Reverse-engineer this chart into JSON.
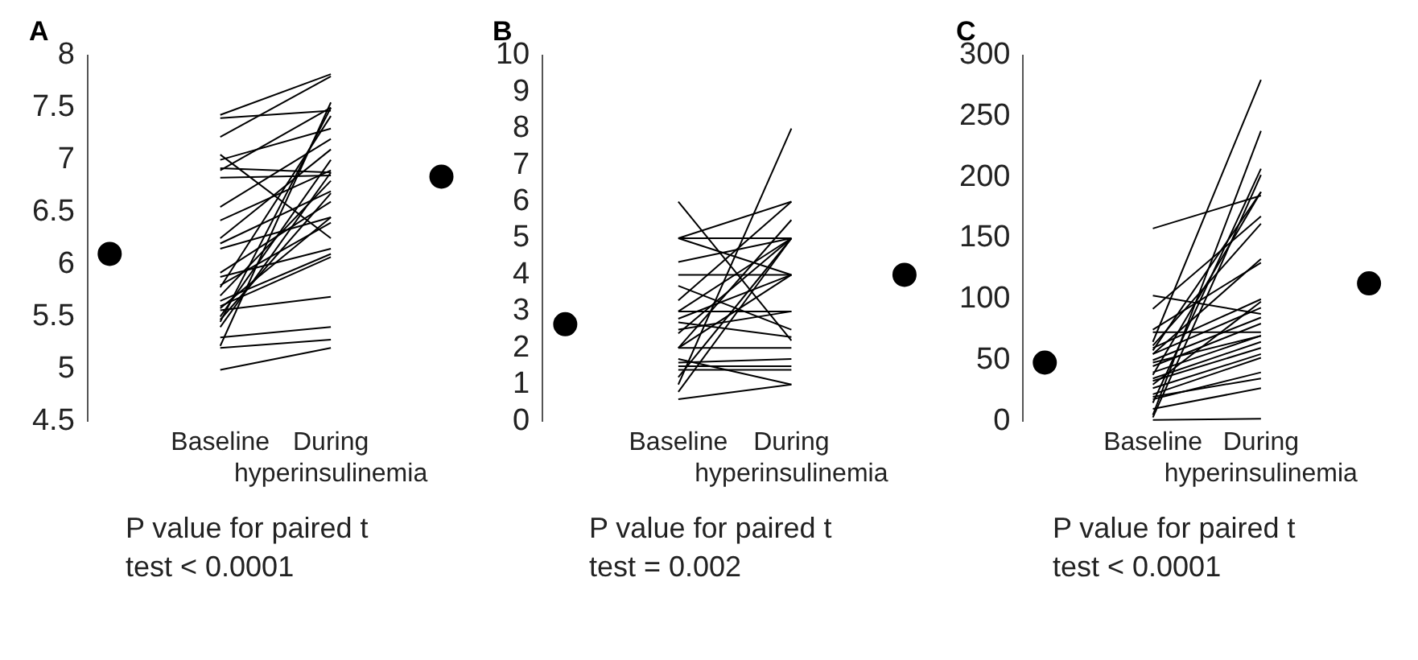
{
  "chart_data": [
    {
      "type": "line",
      "title": "A",
      "categories": [
        null,
        "Baseline",
        "During hyperinsulinemia",
        null
      ],
      "ylim": [
        4.5,
        8
      ],
      "yticks": [
        4.5,
        5,
        5.5,
        6,
        6.5,
        7,
        7.5,
        8
      ],
      "marker": "none",
      "line_style": "solid",
      "annotations": [
        "P value for paired t test < 0.0001"
      ],
      "series": [
        {
          "color": "#000000",
          "values": [
            null,
            4.99,
            5.2,
            null
          ]
        },
        {
          "color": "#000000",
          "values": [
            null,
            5.2,
            5.28,
            null
          ]
        },
        {
          "color": "#000000",
          "values": [
            null,
            5.3,
            5.4,
            null
          ]
        },
        {
          "color": "#000000",
          "values": [
            null,
            5.22,
            7.55,
            null
          ]
        },
        {
          "color": "#000000",
          "values": [
            null,
            5.56,
            5.69,
            null
          ]
        },
        {
          "color": "#000000",
          "values": [
            null,
            7.43,
            7.82,
            null
          ]
        },
        {
          "color": "#000000",
          "values": [
            null,
            7.4,
            7.47,
            null
          ]
        },
        {
          "color": "#000000",
          "values": [
            null,
            7.22,
            7.8,
            null
          ]
        },
        {
          "color": "#000000",
          "values": [
            null,
            7.05,
            6.25,
            null
          ]
        },
        {
          "color": "#000000",
          "values": [
            null,
            6.92,
            6.88,
            null
          ]
        },
        {
          "color": "#000000",
          "values": [
            null,
            6.83,
            6.85,
            null
          ]
        },
        {
          "color": "#000000",
          "values": [
            null,
            6.9,
            7.5,
            null
          ]
        },
        {
          "color": "#000000",
          "values": [
            null,
            7.0,
            7.3,
            null
          ]
        },
        {
          "color": "#000000",
          "values": [
            null,
            6.55,
            7.2,
            null
          ]
        },
        {
          "color": "#000000",
          "values": [
            null,
            6.42,
            6.9,
            null
          ]
        },
        {
          "color": "#000000",
          "values": [
            null,
            6.25,
            7.1,
            null
          ]
        },
        {
          "color": "#000000",
          "values": [
            null,
            6.2,
            6.7,
            null
          ]
        },
        {
          "color": "#000000",
          "values": [
            null,
            6.15,
            6.45,
            null
          ]
        },
        {
          "color": "#000000",
          "values": [
            null,
            5.92,
            6.6,
            null
          ]
        },
        {
          "color": "#000000",
          "values": [
            null,
            5.88,
            6.15,
            null
          ]
        },
        {
          "color": "#000000",
          "values": [
            null,
            5.8,
            6.4,
            null
          ]
        },
        {
          "color": "#000000",
          "values": [
            null,
            5.78,
            7.42,
            null
          ]
        },
        {
          "color": "#000000",
          "values": [
            null,
            5.7,
            6.8,
            null
          ]
        },
        {
          "color": "#000000",
          "values": [
            null,
            5.65,
            6.1,
            null
          ]
        },
        {
          "color": "#000000",
          "values": [
            null,
            5.6,
            6.07,
            null
          ]
        },
        {
          "color": "#000000",
          "values": [
            null,
            5.5,
            7.0,
            null
          ]
        },
        {
          "color": "#000000",
          "values": [
            null,
            5.47,
            6.68,
            null
          ]
        },
        {
          "color": "#000000",
          "values": [
            null,
            5.45,
            7.5,
            null
          ]
        },
        {
          "color": "#000000",
          "values": [
            null,
            5.4,
            6.88,
            null
          ]
        },
        {
          "color": "#000000",
          "values": [
            null,
            5.58,
            6.45,
            null
          ]
        },
        {
          "type": "scatter",
          "marker": "circle",
          "color": "#000000",
          "values": [
            6.1,
            null,
            null,
            6.84
          ]
        }
      ]
    },
    {
      "type": "line",
      "title": "B",
      "categories": [
        null,
        "Baseline",
        "During hyperinsulinemia",
        null
      ],
      "ylim": [
        0,
        10
      ],
      "yticks": [
        0,
        1,
        2,
        3,
        4,
        5,
        6,
        7,
        8,
        9,
        10
      ],
      "marker": "none",
      "line_style": "solid",
      "annotations": [
        "P value for paired t test = 0.002"
      ],
      "series": [
        {
          "color": "#000000",
          "values": [
            null,
            6,
            2.2,
            null
          ]
        },
        {
          "color": "#000000",
          "values": [
            null,
            5,
            6,
            null
          ]
        },
        {
          "color": "#000000",
          "values": [
            null,
            5,
            5,
            null
          ]
        },
        {
          "color": "#000000",
          "values": [
            null,
            5,
            4,
            null
          ]
        },
        {
          "color": "#000000",
          "values": [
            null,
            4.35,
            5,
            null
          ]
        },
        {
          "color": "#000000",
          "values": [
            null,
            4,
            4,
            null
          ]
        },
        {
          "color": "#000000",
          "values": [
            null,
            3.7,
            2.5,
            null
          ]
        },
        {
          "color": "#000000",
          "values": [
            null,
            3.3,
            6,
            null
          ]
        },
        {
          "color": "#000000",
          "values": [
            null,
            3,
            5,
            null
          ]
        },
        {
          "color": "#000000",
          "values": [
            null,
            3,
            3,
            null
          ]
        },
        {
          "color": "#000000",
          "values": [
            null,
            2.8,
            4,
            null
          ]
        },
        {
          "color": "#000000",
          "values": [
            null,
            2.7,
            2.3,
            null
          ]
        },
        {
          "color": "#000000",
          "values": [
            null,
            2.5,
            3,
            null
          ]
        },
        {
          "color": "#000000",
          "values": [
            null,
            2.4,
            5,
            null
          ]
        },
        {
          "color": "#000000",
          "values": [
            null,
            2,
            5.5,
            null
          ]
        },
        {
          "color": "#000000",
          "values": [
            null,
            2,
            2,
            null
          ]
        },
        {
          "color": "#000000",
          "values": [
            null,
            2,
            4,
            null
          ]
        },
        {
          "color": "#000000",
          "values": [
            null,
            1.7,
            1,
            null
          ]
        },
        {
          "color": "#000000",
          "values": [
            null,
            1.6,
            1.7,
            null
          ]
        },
        {
          "color": "#000000",
          "values": [
            null,
            1.5,
            1.5,
            null
          ]
        },
        {
          "color": "#000000",
          "values": [
            null,
            1.4,
            1.4,
            null
          ]
        },
        {
          "color": "#000000",
          "values": [
            null,
            1.2,
            5,
            null
          ]
        },
        {
          "color": "#000000",
          "values": [
            null,
            1,
            8,
            null
          ]
        },
        {
          "color": "#000000",
          "values": [
            null,
            0.8,
            5,
            null
          ]
        },
        {
          "color": "#000000",
          "values": [
            null,
            0.6,
            1,
            null
          ]
        },
        {
          "type": "scatter",
          "marker": "circle",
          "color": "#000000",
          "values": [
            2.65,
            null,
            null,
            4.0
          ]
        }
      ]
    },
    {
      "type": "line",
      "title": "C",
      "categories": [
        null,
        "Baseline",
        "During hyperinsulinemia",
        null
      ],
      "ylim": [
        0,
        300
      ],
      "yticks": [
        0,
        50,
        100,
        150,
        200,
        250,
        300
      ],
      "marker": "none",
      "line_style": "solid",
      "annotations": [
        "P value for paired t test < 0.0001"
      ],
      "series": [
        {
          "color": "#000000",
          "values": [
            null,
            158,
            185,
            null
          ]
        },
        {
          "color": "#000000",
          "values": [
            null,
            103,
            88,
            null
          ]
        },
        {
          "color": "#000000",
          "values": [
            null,
            92,
            168,
            null
          ]
        },
        {
          "color": "#000000",
          "values": [
            null,
            75,
            130,
            null
          ]
        },
        {
          "color": "#000000",
          "values": [
            null,
            73,
            73,
            null
          ]
        },
        {
          "color": "#000000",
          "values": [
            null,
            65,
            280,
            null
          ]
        },
        {
          "color": "#000000",
          "values": [
            null,
            62,
            162,
            null
          ]
        },
        {
          "color": "#000000",
          "values": [
            null,
            60,
            100,
            null
          ]
        },
        {
          "color": "#000000",
          "values": [
            null,
            58,
            188,
            null
          ]
        },
        {
          "color": "#000000",
          "values": [
            null,
            55,
            93,
            null
          ]
        },
        {
          "color": "#000000",
          "values": [
            null,
            55,
            133,
            null
          ]
        },
        {
          "color": "#000000",
          "values": [
            null,
            50,
            85,
            null
          ]
        },
        {
          "color": "#000000",
          "values": [
            null,
            48,
            70,
            null
          ]
        },
        {
          "color": "#000000",
          "values": [
            null,
            45,
            80,
            null
          ]
        },
        {
          "color": "#000000",
          "values": [
            null,
            40,
            70,
            null
          ]
        },
        {
          "color": "#000000",
          "values": [
            null,
            38,
            188,
            null
          ]
        },
        {
          "color": "#000000",
          "values": [
            null,
            35,
            65,
            null
          ]
        },
        {
          "color": "#000000",
          "values": [
            null,
            33,
            60,
            null
          ]
        },
        {
          "color": "#000000",
          "values": [
            null,
            30,
            98,
            null
          ]
        },
        {
          "color": "#000000",
          "values": [
            null,
            27,
            55,
            null
          ]
        },
        {
          "color": "#000000",
          "values": [
            null,
            22,
            52,
            null
          ]
        },
        {
          "color": "#000000",
          "values": [
            null,
            20,
            35,
            null
          ]
        },
        {
          "color": "#000000",
          "values": [
            null,
            18,
            40,
            null
          ]
        },
        {
          "color": "#000000",
          "values": [
            null,
            15,
            207,
            null
          ]
        },
        {
          "color": "#000000",
          "values": [
            null,
            10,
            27,
            null
          ]
        },
        {
          "color": "#000000",
          "values": [
            null,
            5,
            238,
            null
          ]
        },
        {
          "color": "#000000",
          "values": [
            null,
            3,
            202,
            null
          ]
        },
        {
          "color": "#000000",
          "values": [
            null,
            1,
            2,
            null
          ]
        },
        {
          "type": "scatter",
          "marker": "circle",
          "color": "#000000",
          "values": [
            48,
            null,
            null,
            113
          ]
        }
      ]
    }
  ]
}
